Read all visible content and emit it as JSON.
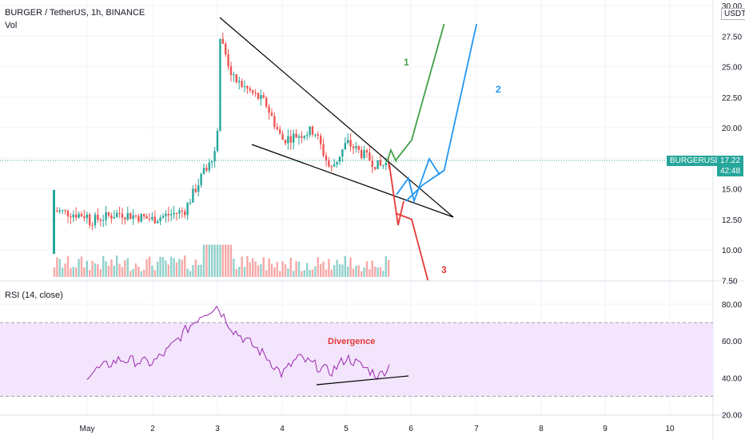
{
  "header": {
    "symbol_line": "BURGER / TetherUS, 1h, BINANCE",
    "vol_label": "Vol",
    "rsi_label": "RSI (14, close)"
  },
  "price_axis": {
    "currency": "USDT",
    "ticks": [
      "30.00",
      "27.50",
      "25.00",
      "22.50",
      "20.00",
      "17.50",
      "15.00",
      "12.50",
      "10.00",
      "7.50"
    ],
    "last_symbol": "BURGERUSDT",
    "last_price": "17.22",
    "countdown": "42:48"
  },
  "rsi_axis": {
    "ticks": [
      "80.00",
      "60.00",
      "40.00",
      "20.00"
    ]
  },
  "time_axis": {
    "ticks": [
      "May",
      "2",
      "3",
      "4",
      "5",
      "6",
      "7",
      "8",
      "9",
      "10"
    ]
  },
  "annotations": {
    "path1": "1",
    "path2": "2",
    "path3": "3",
    "divergence": "Divergence"
  },
  "colors": {
    "up": "#26a69a",
    "down": "#ef5350",
    "green_path": "#43a047",
    "blue_path": "#2196f3",
    "red_path": "#e53935",
    "rsi_line": "#9c27b0",
    "rsi_band": "#f3e5fc",
    "divergence_text": "#e53935",
    "price_tag": "#26a69a"
  },
  "chart_data": {
    "type": "candlestick",
    "price_ylim": [
      7.5,
      30
    ],
    "rsi_ylim": [
      20,
      80
    ],
    "rsi_band": [
      30,
      70
    ],
    "close_path": [
      {
        "x": "May 1",
        "y": 12.3
      },
      {
        "x": "May 1 12:00",
        "y": 13.0
      },
      {
        "x": "May 2",
        "y": 12.5
      },
      {
        "x": "May 2 12:00",
        "y": 13.2
      },
      {
        "x": "May 3",
        "y": 18.5
      },
      {
        "x": "May 3 01:00",
        "y": 27.5
      },
      {
        "x": "May 3 06:00",
        "y": 24.0
      },
      {
        "x": "May 3 18:00",
        "y": 22.0
      },
      {
        "x": "May 4",
        "y": 19.0
      },
      {
        "x": "May 4 12:00",
        "y": 19.8
      },
      {
        "x": "May 4 18:00",
        "y": 16.5
      },
      {
        "x": "May 5",
        "y": 18.8
      },
      {
        "x": "May 5 12:00",
        "y": 16.8
      },
      {
        "x": "May 5 16:00",
        "y": 17.22
      }
    ],
    "rsi_points": [
      {
        "x": "May 1",
        "y": 42
      },
      {
        "x": "May 1 12:00",
        "y": 50
      },
      {
        "x": "May 2",
        "y": 48
      },
      {
        "x": "May 2 06:00",
        "y": 55
      },
      {
        "x": "May 2 12:00",
        "y": 65
      },
      {
        "x": "May 2 18:00",
        "y": 74
      },
      {
        "x": "May 3",
        "y": 79
      },
      {
        "x": "May 3 06:00",
        "y": 66
      },
      {
        "x": "May 3 18:00",
        "y": 52
      },
      {
        "x": "May 4",
        "y": 42
      },
      {
        "x": "May 4 06:00",
        "y": 51
      },
      {
        "x": "May 4 18:00",
        "y": 43
      },
      {
        "x": "May 5",
        "y": 51
      },
      {
        "x": "May 5 12:00",
        "y": 41
      },
      {
        "x": "May 5 16:00",
        "y": 47
      }
    ],
    "projections": [
      {
        "label": "1",
        "points": [
          {
            "x": "May 5 18:00",
            "y": 17.3
          },
          {
            "x": "May 6",
            "y": 19.0
          },
          {
            "x": "May 6 12:00",
            "y": 28.5
          }
        ]
      },
      {
        "label": "2",
        "points": [
          {
            "x": "May 5 22:00",
            "y": 14.0
          },
          {
            "x": "May 6 04:00",
            "y": 15.3
          },
          {
            "x": "May 6 12:00",
            "y": 16.5
          },
          {
            "x": "May 7",
            "y": 28.5
          }
        ]
      },
      {
        "label": "3",
        "points": [
          {
            "x": "May 5 18:00",
            "y": 13.0
          },
          {
            "x": "May 6",
            "y": 12.5
          },
          {
            "x": "May 6 06:00",
            "y": 7.5
          }
        ]
      }
    ]
  }
}
